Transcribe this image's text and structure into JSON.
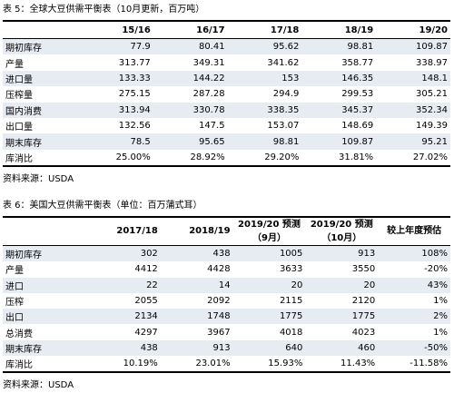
{
  "table1": {
    "caption": "表 5：全球大豆供需平衡表（10月更新，百万吨）",
    "columns": [
      "",
      "15/16",
      "16/17",
      "17/18",
      "18/19",
      "19/20"
    ],
    "rows": [
      {
        "label": "期初库存",
        "values": [
          "77.9",
          "80.41",
          "95.62",
          "98.81",
          "109.87"
        ]
      },
      {
        "label": "产量",
        "values": [
          "313.77",
          "349.31",
          "341.62",
          "358.77",
          "338.97"
        ]
      },
      {
        "label": "进口量",
        "values": [
          "133.33",
          "144.22",
          "153",
          "146.35",
          "148.1"
        ]
      },
      {
        "label": "压榨量",
        "values": [
          "275.15",
          "287.28",
          "294.9",
          "299.53",
          "305.21"
        ]
      },
      {
        "label": "国内消费",
        "values": [
          "313.94",
          "330.78",
          "338.35",
          "345.37",
          "352.34"
        ]
      },
      {
        "label": "出口量",
        "values": [
          "132.56",
          "147.5",
          "153.07",
          "148.69",
          "149.39"
        ]
      },
      {
        "label": "期末库存",
        "values": [
          "78.5",
          "95.65",
          "98.81",
          "109.87",
          "95.21"
        ]
      },
      {
        "label": "库消比",
        "values": [
          "25.00%",
          "28.92%",
          "29.20%",
          "31.81%",
          "27.02%"
        ]
      }
    ],
    "source": "资料来源：USDA"
  },
  "table2": {
    "caption": "表 6：美国大豆供需平衡表（单位：百万蒲式耳）",
    "columns": [
      {
        "line1": "",
        "line2": ""
      },
      {
        "line1": "",
        "line2": "2017/18"
      },
      {
        "line1": "",
        "line2": "2018/19"
      },
      {
        "line1": "2019/20 预测",
        "line2": "（9月）"
      },
      {
        "line1": "2019/20 预测",
        "line2": "（10月）"
      },
      {
        "line1": "",
        "line2": "较上年度预估"
      }
    ],
    "rows": [
      {
        "label": "期初库存",
        "values": [
          "302",
          "438",
          "1005",
          "913",
          "108%"
        ]
      },
      {
        "label": "产量",
        "values": [
          "4412",
          "4428",
          "3633",
          "3550",
          "-20%"
        ]
      },
      {
        "label": "进口",
        "values": [
          "22",
          "14",
          "20",
          "20",
          "43%"
        ]
      },
      {
        "label": "压榨",
        "values": [
          "2055",
          "2092",
          "2115",
          "2120",
          "1%"
        ]
      },
      {
        "label": "出口",
        "values": [
          "2134",
          "1748",
          "1775",
          "1775",
          "2%"
        ]
      },
      {
        "label": "总消费",
        "values": [
          "4297",
          "3967",
          "4018",
          "4023",
          "1%"
        ]
      },
      {
        "label": "期末库存",
        "values": [
          "438",
          "913",
          "640",
          "460",
          "-50%"
        ]
      },
      {
        "label": "库消比",
        "values": [
          "10.19%",
          "23.01%",
          "15.93%",
          "11.43%",
          "-11.58%"
        ]
      }
    ],
    "source": "资料来源：USDA"
  }
}
